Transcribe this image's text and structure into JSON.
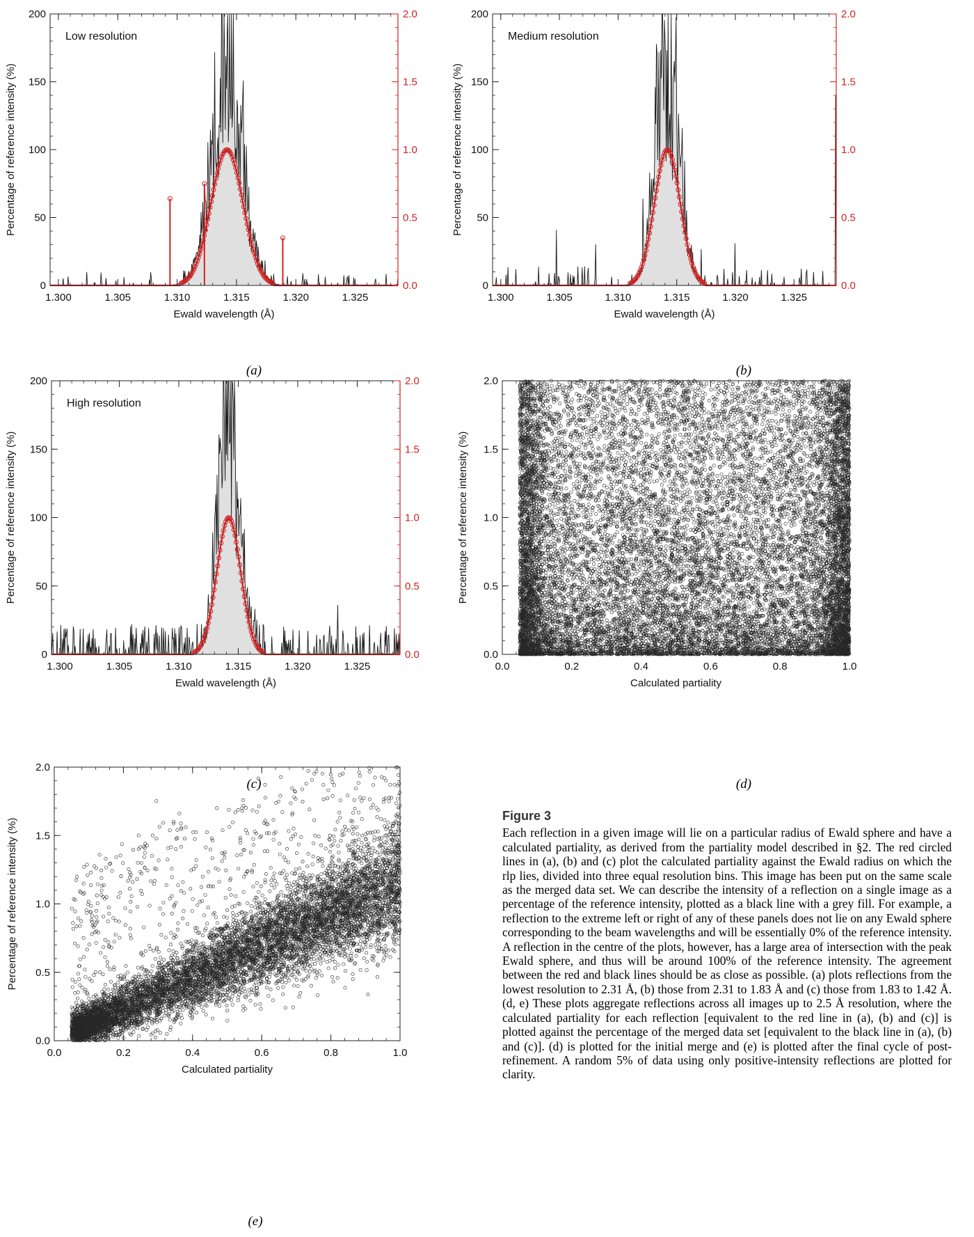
{
  "colors": {
    "reference": "#1a1a1a",
    "fill": "#e0e0e0",
    "partiality": "#cc2222",
    "scatter": "#000000"
  },
  "chart_data": [
    {
      "panel": "(a)",
      "type": "line",
      "annotation": "Low resolution",
      "xlabel": "Ewald wavelength (Å)",
      "ylabel": "Percentage of reference intensity (%)",
      "xlim": [
        1.2993,
        1.3286
      ],
      "ylim": [
        0,
        200
      ],
      "y2lim": [
        0,
        2.0
      ],
      "xticks": [
        "1.300",
        "1.305",
        "1.310",
        "1.315",
        "1.320",
        "1.325"
      ],
      "yticks": [
        "0",
        "50",
        "100",
        "150",
        "200"
      ],
      "y2ticks": [
        "0.0",
        "0.5",
        "1.0",
        "1.5",
        "2.0"
      ],
      "peak": {
        "center": 1.3142,
        "sigma": 0.0013,
        "height": 183
      },
      "partiality_peak": {
        "center": 1.3142,
        "sigma": 0.00135,
        "height": 1.0
      },
      "spikes": [
        {
          "x": 1.3094,
          "y": 0.64
        },
        {
          "x": 1.3189,
          "y": 0.35
        },
        {
          "x": 1.3123,
          "y": 0.75
        }
      ],
      "grid": false
    },
    {
      "panel": "(b)",
      "type": "line",
      "annotation": "Medium resolution",
      "xlabel": "Ewald wavelength (Å)",
      "ylabel": "Percentage of reference intensity (%)",
      "xlim": [
        1.2993,
        1.3286
      ],
      "ylim": [
        0,
        200
      ],
      "y2lim": [
        0,
        2.0
      ],
      "xticks": [
        "1.300",
        "1.305",
        "1.310",
        "1.315",
        "1.320",
        "1.325"
      ],
      "yticks": [
        "0",
        "50",
        "100",
        "150",
        "200"
      ],
      "y2ticks": [
        "0.0",
        "0.5",
        "1.0",
        "1.5",
        "2.0"
      ],
      "peak": {
        "center": 1.3142,
        "sigma": 0.001,
        "height": 200
      },
      "partiality_peak": {
        "center": 1.3142,
        "sigma": 0.0011,
        "height": 1.0
      },
      "grid": false
    },
    {
      "panel": "(c)",
      "type": "line",
      "annotation": "High resolution",
      "xlabel": "Ewald wavelength (Å)",
      "ylabel": "Percentage of reference intensity (%)",
      "xlim": [
        1.2993,
        1.3286
      ],
      "ylim": [
        0,
        200
      ],
      "y2lim": [
        0,
        2.0
      ],
      "xticks": [
        "1.300",
        "1.305",
        "1.310",
        "1.315",
        "1.320",
        "1.325"
      ],
      "yticks": [
        "0",
        "50",
        "100",
        "150",
        "200"
      ],
      "y2ticks": [
        "0.0",
        "0.5",
        "1.0",
        "1.5",
        "2.0"
      ],
      "peak": {
        "center": 1.3142,
        "sigma": 0.0009,
        "height": 200
      },
      "partiality_peak": {
        "center": 1.3142,
        "sigma": 0.001,
        "height": 1.0
      },
      "grid": false
    },
    {
      "panel": "(d)",
      "type": "scatter",
      "xlabel": "Calculated partiality",
      "ylabel": "Percentage of reference intensity (%)",
      "xlim": [
        0,
        1.0
      ],
      "ylim": [
        0,
        2.0
      ],
      "xticks": [
        "0.0",
        "0.2",
        "0.4",
        "0.6",
        "0.8",
        "1.0"
      ],
      "yticks": [
        "0.0",
        "0.5",
        "1.0",
        "1.5",
        "2.0"
      ],
      "distribution": "uniform-dense",
      "x_min": 0.05,
      "grid": false
    },
    {
      "panel": "(e)",
      "type": "scatter",
      "xlabel": "Calculated partiality",
      "ylabel": "Percentage of reference intensity (%)",
      "xlim": [
        0,
        1.0
      ],
      "ylim": [
        0,
        2.0
      ],
      "xticks": [
        "0.0",
        "0.2",
        "0.4",
        "0.6",
        "0.8",
        "1.0"
      ],
      "yticks": [
        "0.0",
        "0.5",
        "1.0",
        "1.5",
        "2.0"
      ],
      "distribution": "linear-correlated",
      "x_min": 0.05,
      "trend_slope": 1.15,
      "grid": false
    }
  ],
  "labels": {
    "a": "(a)",
    "b": "(b)",
    "c": "(c)",
    "d": "(d)",
    "e": "(e)"
  },
  "caption": {
    "title": "Figure 3",
    "text": "Each reflection in a given image will lie on a particular radius of Ewald sphere and have a calculated partiality, as derived from the partiality model described in §2. The red circled lines in (a), (b) and (c) plot the calculated partiality against the Ewald radius on which the rlp lies, divided into three equal resolution bins. This image has been put on the same scale as the merged data set. We can describe the intensity of a reflection on a single image as a percentage of the reference intensity, plotted as a black line with a grey fill. For example, a reflection to the extreme left or right of any of these panels does not lie on any Ewald sphere corresponding to the beam wavelengths and will be essentially 0% of the reference intensity. A reflection in the centre of the plots, however, has a large area of intersection with the peak Ewald sphere, and thus will be around 100% of the reference intensity. The agreement between the red and black lines should be as close as possible. (a) plots reflections from the lowest resolution to 2.31 Å, (b) those from 2.31 to 1.83 Å and (c) those from 1.83 to 1.42 Å. (d, e) These plots aggregate reflections across all images up to 2.5 Å resolution, where the calculated partiality for each reflection [equivalent to the red line in (a), (b) and (c)] is plotted against the percentage of the merged data set [equivalent to the black line in (a), (b) and (c)]. (d) is plotted for the initial merge and (e) is plotted after the final cycle of post-refinement. A random 5% of data using only positive-intensity reflections are plotted for clarity."
  }
}
